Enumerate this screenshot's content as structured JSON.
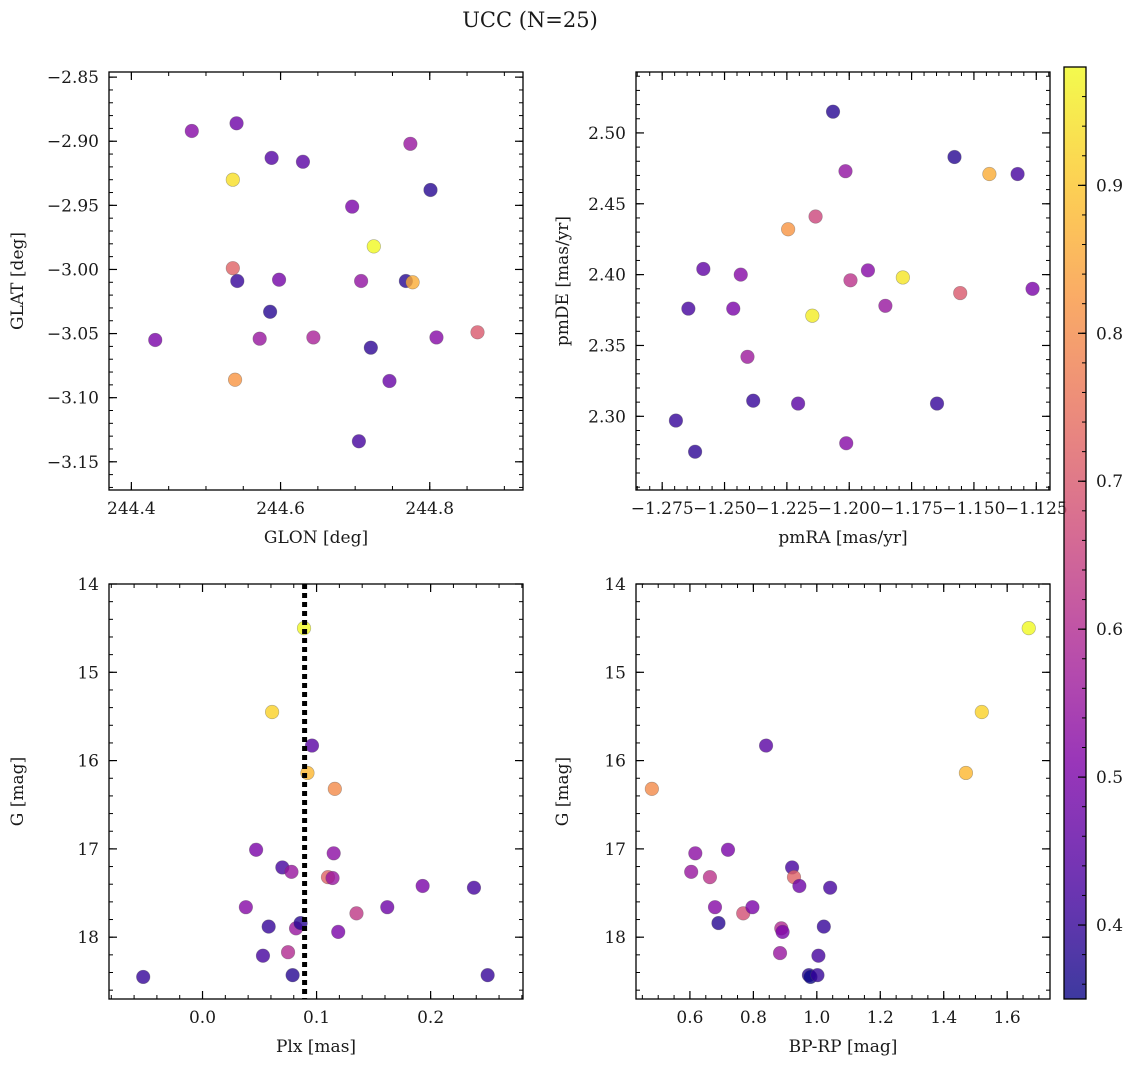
{
  "figure": {
    "suptitle": "UCC (N=25)",
    "colormap": "plasma",
    "marker_alpha": 0.8
  },
  "colorbar": {
    "range": [
      0.35,
      0.98
    ],
    "ticks": [
      0.4,
      0.5,
      0.6,
      0.7,
      0.8,
      0.9
    ]
  },
  "chart_data": [
    {
      "type": "scatter",
      "xlabel": "GLON [deg]",
      "ylabel": "GLAT [deg]",
      "xlim": [
        244.37,
        244.925
      ],
      "ylim": [
        -3.172,
        -2.846
      ],
      "invert_y": false,
      "xticks": [
        {
          "v": 244.4,
          "label": "244.4"
        },
        {
          "v": 244.6,
          "label": "244.6"
        },
        {
          "v": 244.8,
          "label": "244.8"
        }
      ],
      "yticks": [
        {
          "v": -2.85,
          "label": "−2.85"
        },
        {
          "v": -2.9,
          "label": "−2.90"
        },
        {
          "v": -2.95,
          "label": "−2.95"
        },
        {
          "v": -3.0,
          "label": "−3.00"
        },
        {
          "v": -3.05,
          "label": "−3.05"
        },
        {
          "v": -3.1,
          "label": "−3.10"
        },
        {
          "v": -3.15,
          "label": "−3.15"
        }
      ],
      "xminor": 0.05,
      "yminor": 0.01,
      "points": [
        {
          "x": 244.432,
          "y": -3.055,
          "c": 0.5
        },
        {
          "x": 244.481,
          "y": -2.892,
          "c": 0.52
        },
        {
          "x": 244.536,
          "y": -2.93,
          "c": 0.94
        },
        {
          "x": 244.536,
          "y": -2.999,
          "c": 0.72
        },
        {
          "x": 244.539,
          "y": -3.086,
          "c": 0.82
        },
        {
          "x": 244.541,
          "y": -2.886,
          "c": 0.48
        },
        {
          "x": 244.542,
          "y": -3.009,
          "c": 0.4
        },
        {
          "x": 244.572,
          "y": -3.054,
          "c": 0.55
        },
        {
          "x": 244.586,
          "y": -3.033,
          "c": 0.38
        },
        {
          "x": 244.588,
          "y": -2.913,
          "c": 0.44
        },
        {
          "x": 244.598,
          "y": -3.008,
          "c": 0.49
        },
        {
          "x": 244.63,
          "y": -2.916,
          "c": 0.45
        },
        {
          "x": 244.644,
          "y": -3.053,
          "c": 0.58
        },
        {
          "x": 244.696,
          "y": -2.951,
          "c": 0.5
        },
        {
          "x": 244.705,
          "y": -3.134,
          "c": 0.42
        },
        {
          "x": 244.708,
          "y": -3.009,
          "c": 0.54
        },
        {
          "x": 244.721,
          "y": -3.061,
          "c": 0.39
        },
        {
          "x": 244.725,
          "y": -2.982,
          "c": 0.98
        },
        {
          "x": 244.746,
          "y": -3.087,
          "c": 0.47
        },
        {
          "x": 244.768,
          "y": -3.009,
          "c": 0.38
        },
        {
          "x": 244.774,
          "y": -2.902,
          "c": 0.55
        },
        {
          "x": 244.777,
          "y": -3.01,
          "c": 0.86
        },
        {
          "x": 244.801,
          "y": -2.938,
          "c": 0.38
        },
        {
          "x": 244.809,
          "y": -3.053,
          "c": 0.52
        },
        {
          "x": 244.864,
          "y": -3.049,
          "c": 0.7
        }
      ]
    },
    {
      "type": "scatter",
      "xlabel": "pmRA [mas/yr]",
      "ylabel": "pmDE [mas/yr]",
      "xlim": [
        -1.2855,
        -1.1195
      ],
      "ylim": [
        2.248,
        2.543
      ],
      "invert_y": false,
      "xticks": [
        {
          "v": -1.275,
          "label": "−1.275"
        },
        {
          "v": -1.25,
          "label": "−1.250"
        },
        {
          "v": -1.225,
          "label": "−1.225"
        },
        {
          "v": -1.2,
          "label": "−1.200"
        },
        {
          "v": -1.175,
          "label": "−1.175"
        },
        {
          "v": -1.15,
          "label": "−1.150"
        },
        {
          "v": -1.125,
          "label": "−1.125"
        }
      ],
      "yticks": [
        {
          "v": 2.3,
          "label": "2.30"
        },
        {
          "v": 2.35,
          "label": "2.35"
        },
        {
          "v": 2.4,
          "label": "2.40"
        },
        {
          "v": 2.45,
          "label": "2.45"
        },
        {
          "v": 2.5,
          "label": "2.50"
        }
      ],
      "xminor": 0.005,
      "yminor": 0.01,
      "points": [
        {
          "x": -1.2695,
          "y": 2.297,
          "c": 0.4
        },
        {
          "x": -1.2645,
          "y": 2.376,
          "c": 0.42
        },
        {
          "x": -1.2618,
          "y": 2.275,
          "c": 0.39
        },
        {
          "x": -1.2585,
          "y": 2.404,
          "c": 0.46
        },
        {
          "x": -1.2465,
          "y": 2.376,
          "c": 0.5
        },
        {
          "x": -1.2435,
          "y": 2.4,
          "c": 0.52
        },
        {
          "x": -1.2408,
          "y": 2.342,
          "c": 0.56
        },
        {
          "x": -1.2385,
          "y": 2.311,
          "c": 0.4
        },
        {
          "x": -1.2245,
          "y": 2.432,
          "c": 0.82
        },
        {
          "x": -1.2205,
          "y": 2.309,
          "c": 0.45
        },
        {
          "x": -1.2148,
          "y": 2.371,
          "c": 0.96
        },
        {
          "x": -1.2135,
          "y": 2.441,
          "c": 0.66
        },
        {
          "x": -1.2065,
          "y": 2.515,
          "c": 0.38
        },
        {
          "x": -1.2015,
          "y": 2.473,
          "c": 0.54
        },
        {
          "x": -1.2012,
          "y": 2.281,
          "c": 0.52
        },
        {
          "x": -1.1995,
          "y": 2.396,
          "c": 0.62
        },
        {
          "x": -1.1925,
          "y": 2.403,
          "c": 0.52
        },
        {
          "x": -1.1855,
          "y": 2.378,
          "c": 0.55
        },
        {
          "x": -1.1785,
          "y": 2.398,
          "c": 0.95
        },
        {
          "x": -1.1648,
          "y": 2.309,
          "c": 0.4
        },
        {
          "x": -1.1578,
          "y": 2.483,
          "c": 0.38
        },
        {
          "x": -1.1555,
          "y": 2.387,
          "c": 0.7
        },
        {
          "x": -1.1438,
          "y": 2.471,
          "c": 0.86
        },
        {
          "x": -1.1325,
          "y": 2.471,
          "c": 0.42
        },
        {
          "x": -1.1265,
          "y": 2.39,
          "c": 0.5
        }
      ]
    },
    {
      "type": "scatter",
      "xlabel": "Plx [mas]",
      "ylabel": "G [mag]",
      "xlim": [
        -0.082,
        0.281
      ],
      "ylim": [
        14.0,
        18.7
      ],
      "invert_y": true,
      "vline": {
        "x": 0.0895,
        "style": "dotted"
      },
      "xticks": [
        {
          "v": 0.0,
          "label": "0.0"
        },
        {
          "v": 0.1,
          "label": "0.1"
        },
        {
          "v": 0.2,
          "label": "0.2"
        }
      ],
      "yticks": [
        {
          "v": 14,
          "label": "14"
        },
        {
          "v": 15,
          "label": "15"
        },
        {
          "v": 16,
          "label": "16"
        },
        {
          "v": 17,
          "label": "17"
        },
        {
          "v": 18,
          "label": "18"
        }
      ],
      "xminor": 0.02,
      "yminor": 0.2,
      "points": [
        {
          "x": -0.052,
          "y": 18.45,
          "c": 0.4
        },
        {
          "x": 0.038,
          "y": 17.66,
          "c": 0.52
        },
        {
          "x": 0.047,
          "y": 17.01,
          "c": 0.5
        },
        {
          "x": 0.053,
          "y": 18.21,
          "c": 0.42
        },
        {
          "x": 0.058,
          "y": 17.88,
          "c": 0.4
        },
        {
          "x": 0.061,
          "y": 15.45,
          "c": 0.92
        },
        {
          "x": 0.07,
          "y": 17.21,
          "c": 0.42
        },
        {
          "x": 0.075,
          "y": 18.17,
          "c": 0.6
        },
        {
          "x": 0.078,
          "y": 17.26,
          "c": 0.55
        },
        {
          "x": 0.079,
          "y": 18.43,
          "c": 0.38
        },
        {
          "x": 0.082,
          "y": 17.9,
          "c": 0.55
        },
        {
          "x": 0.086,
          "y": 17.84,
          "c": 0.38
        },
        {
          "x": 0.089,
          "y": 14.5,
          "c": 0.98
        },
        {
          "x": 0.092,
          "y": 16.14,
          "c": 0.88
        },
        {
          "x": 0.096,
          "y": 15.83,
          "c": 0.45
        },
        {
          "x": 0.11,
          "y": 17.32,
          "c": 0.72
        },
        {
          "x": 0.114,
          "y": 17.33,
          "c": 0.55
        },
        {
          "x": 0.115,
          "y": 17.05,
          "c": 0.53
        },
        {
          "x": 0.116,
          "y": 16.32,
          "c": 0.8
        },
        {
          "x": 0.119,
          "y": 17.94,
          "c": 0.5
        },
        {
          "x": 0.135,
          "y": 17.73,
          "c": 0.63
        },
        {
          "x": 0.162,
          "y": 17.66,
          "c": 0.48
        },
        {
          "x": 0.193,
          "y": 17.42,
          "c": 0.5
        },
        {
          "x": 0.238,
          "y": 17.44,
          "c": 0.42
        },
        {
          "x": 0.25,
          "y": 18.43,
          "c": 0.4
        }
      ]
    },
    {
      "type": "scatter",
      "xlabel": "BP-RP [mag]",
      "ylabel": "G [mag]",
      "xlim": [
        0.43,
        1.735
      ],
      "ylim": [
        14.0,
        18.7
      ],
      "invert_y": true,
      "xticks": [
        {
          "v": 0.6,
          "label": "0.6"
        },
        {
          "v": 0.8,
          "label": "0.8"
        },
        {
          "v": 1.0,
          "label": "1.0"
        },
        {
          "v": 1.2,
          "label": "1.2"
        },
        {
          "v": 1.4,
          "label": "1.4"
        },
        {
          "v": 1.6,
          "label": "1.6"
        }
      ],
      "yticks": [
        {
          "v": 14,
          "label": "14"
        },
        {
          "v": 15,
          "label": "15"
        },
        {
          "v": 16,
          "label": "16"
        },
        {
          "v": 17,
          "label": "17"
        },
        {
          "v": 18,
          "label": "18"
        }
      ],
      "xminor": 0.05,
      "yminor": 0.2,
      "points": [
        {
          "x": 0.48,
          "y": 16.32,
          "c": 0.8
        },
        {
          "x": 0.604,
          "y": 17.26,
          "c": 0.55
        },
        {
          "x": 0.617,
          "y": 17.05,
          "c": 0.53
        },
        {
          "x": 0.663,
          "y": 17.32,
          "c": 0.62
        },
        {
          "x": 0.679,
          "y": 17.66,
          "c": 0.52
        },
        {
          "x": 0.69,
          "y": 17.84,
          "c": 0.38
        },
        {
          "x": 0.72,
          "y": 17.01,
          "c": 0.5
        },
        {
          "x": 0.768,
          "y": 17.73,
          "c": 0.68
        },
        {
          "x": 0.797,
          "y": 17.66,
          "c": 0.5
        },
        {
          "x": 0.84,
          "y": 15.83,
          "c": 0.45
        },
        {
          "x": 0.884,
          "y": 18.18,
          "c": 0.55
        },
        {
          "x": 0.888,
          "y": 17.9,
          "c": 0.6
        },
        {
          "x": 0.892,
          "y": 17.94,
          "c": 0.5
        },
        {
          "x": 0.922,
          "y": 17.21,
          "c": 0.42
        },
        {
          "x": 0.928,
          "y": 17.32,
          "c": 0.72
        },
        {
          "x": 0.945,
          "y": 17.42,
          "c": 0.48
        },
        {
          "x": 0.975,
          "y": 18.43,
          "c": 0.38
        },
        {
          "x": 0.98,
          "y": 18.45,
          "c": 0.35
        },
        {
          "x": 1.002,
          "y": 18.43,
          "c": 0.4
        },
        {
          "x": 1.005,
          "y": 18.21,
          "c": 0.42
        },
        {
          "x": 1.022,
          "y": 17.88,
          "c": 0.4
        },
        {
          "x": 1.042,
          "y": 17.44,
          "c": 0.42
        },
        {
          "x": 1.47,
          "y": 16.14,
          "c": 0.88
        },
        {
          "x": 1.52,
          "y": 15.45,
          "c": 0.92
        },
        {
          "x": 1.668,
          "y": 14.5,
          "c": 0.98
        }
      ]
    }
  ]
}
